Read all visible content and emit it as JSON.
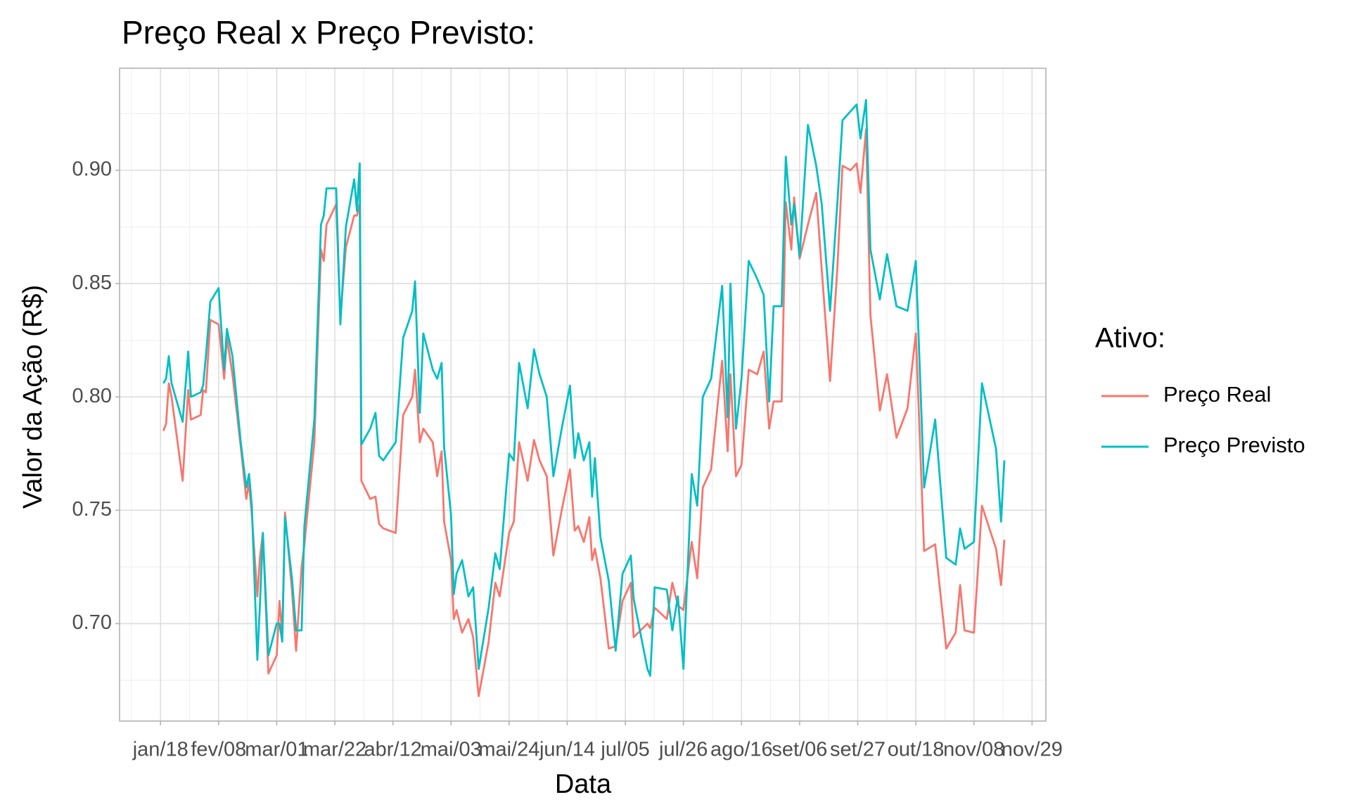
{
  "chart_data": {
    "type": "line",
    "title": "Preço Real x Preço Previsto:",
    "x_label": "Data",
    "y_label": "Valor da Ação (R$)",
    "legend_title": "Ativo:",
    "legend_position": "right",
    "grid": true,
    "x": [
      1,
      2,
      3,
      4,
      8,
      10,
      11,
      14.5,
      15.4,
      16.4,
      18,
      21,
      23,
      24,
      26,
      29,
      31,
      32,
      33,
      35,
      36,
      37,
      39,
      42,
      43,
      44,
      45,
      47.5,
      49,
      51,
      52,
      55.6,
      58,
      59,
      60,
      63.5,
      65,
      67,
      70,
      71,
      72,
      72.6,
      75.8,
      77.7,
      79,
      80.5,
      85,
      87.7,
      91,
      92,
      93.7,
      95,
      98.4,
      100,
      101.6,
      102.5,
      105,
      106,
      107,
      109,
      111.3,
      113,
      115,
      118.6,
      121,
      122.6,
      126,
      127.7,
      129.6,
      132.7,
      135,
      137,
      139.6,
      142,
      145,
      148,
      149.7,
      151,
      153,
      155,
      156,
      157,
      159,
      162,
      164.5,
      167,
      170,
      171,
      176,
      177,
      178.6,
      183,
      185,
      187,
      189,
      192,
      194,
      196,
      199,
      203,
      205,
      206,
      208,
      210,
      212.6,
      215.7,
      218,
      220,
      221.6,
      224.5,
      226,
      228,
      229,
      231,
      234,
      237,
      239,
      242,
      244.6,
      246.5,
      249.4,
      251.6,
      253,
      255,
      256.6,
      260,
      262.6,
      266,
      270,
      273,
      276,
      280,
      284,
      287.4,
      289,
      290.6,
      294,
      296.9,
      302,
      303.8,
      305
    ],
    "series": [
      {
        "name": "Preço Real",
        "color": "#F8766D",
        "values": [
          0.785,
          0.788,
          0.806,
          0.8,
          0.763,
          0.803,
          0.79,
          0.792,
          0.803,
          0.802,
          0.834,
          0.832,
          0.808,
          0.826,
          0.81,
          0.778,
          0.755,
          0.762,
          0.748,
          0.712,
          0.73,
          0.74,
          0.678,
          0.686,
          0.71,
          0.695,
          0.749,
          0.715,
          0.688,
          0.725,
          0.735,
          0.78,
          0.865,
          0.86,
          0.876,
          0.885,
          0.835,
          0.866,
          0.88,
          0.88,
          0.885,
          0.763,
          0.755,
          0.756,
          0.744,
          0.742,
          0.74,
          0.792,
          0.8,
          0.812,
          0.78,
          0.786,
          0.78,
          0.765,
          0.776,
          0.745,
          0.728,
          0.702,
          0.706,
          0.696,
          0.702,
          0.694,
          0.668,
          0.692,
          0.718,
          0.712,
          0.74,
          0.745,
          0.78,
          0.763,
          0.781,
          0.772,
          0.765,
          0.73,
          0.75,
          0.768,
          0.741,
          0.743,
          0.736,
          0.747,
          0.728,
          0.733,
          0.72,
          0.689,
          0.69,
          0.71,
          0.718,
          0.694,
          0.7,
          0.698,
          0.707,
          0.702,
          0.718,
          0.708,
          0.706,
          0.736,
          0.72,
          0.76,
          0.768,
          0.816,
          0.776,
          0.81,
          0.765,
          0.77,
          0.812,
          0.81,
          0.82,
          0.786,
          0.798,
          0.798,
          0.886,
          0.865,
          0.888,
          0.861,
          0.876,
          0.89,
          0.856,
          0.807,
          0.856,
          0.902,
          0.9,
          0.903,
          0.89,
          0.918,
          0.836,
          0.794,
          0.81,
          0.782,
          0.795,
          0.828,
          0.732,
          0.735,
          0.689,
          0.696,
          0.717,
          0.697,
          0.696,
          0.752,
          0.733,
          0.717,
          0.737
        ]
      },
      {
        "name": "Preço Previsto",
        "color": "#00BFC4",
        "values": [
          0.806,
          0.808,
          0.818,
          0.806,
          0.789,
          0.82,
          0.8,
          0.802,
          0.805,
          0.818,
          0.842,
          0.848,
          0.812,
          0.83,
          0.818,
          0.78,
          0.76,
          0.766,
          0.752,
          0.684,
          0.71,
          0.74,
          0.686,
          0.7,
          0.7,
          0.692,
          0.747,
          0.72,
          0.697,
          0.697,
          0.743,
          0.79,
          0.876,
          0.88,
          0.892,
          0.892,
          0.832,
          0.875,
          0.896,
          0.882,
          0.903,
          0.779,
          0.786,
          0.793,
          0.774,
          0.772,
          0.78,
          0.826,
          0.838,
          0.851,
          0.793,
          0.828,
          0.812,
          0.808,
          0.815,
          0.778,
          0.748,
          0.713,
          0.722,
          0.728,
          0.712,
          0.716,
          0.68,
          0.707,
          0.731,
          0.724,
          0.775,
          0.772,
          0.815,
          0.795,
          0.821,
          0.81,
          0.8,
          0.765,
          0.786,
          0.805,
          0.773,
          0.784,
          0.772,
          0.78,
          0.756,
          0.773,
          0.738,
          0.719,
          0.688,
          0.722,
          0.73,
          0.711,
          0.68,
          0.677,
          0.716,
          0.715,
          0.697,
          0.712,
          0.68,
          0.766,
          0.752,
          0.8,
          0.808,
          0.849,
          0.791,
          0.85,
          0.786,
          0.808,
          0.86,
          0.852,
          0.845,
          0.798,
          0.84,
          0.84,
          0.906,
          0.876,
          0.885,
          0.862,
          0.92,
          0.902,
          0.885,
          0.838,
          0.885,
          0.922,
          0.926,
          0.929,
          0.914,
          0.931,
          0.865,
          0.843,
          0.863,
          0.84,
          0.838,
          0.86,
          0.76,
          0.79,
          0.729,
          0.726,
          0.742,
          0.733,
          0.736,
          0.806,
          0.777,
          0.745,
          0.772
        ]
      }
    ],
    "xlim": [
      -14.8,
      320
    ],
    "xticks": [
      {
        "value": 0,
        "label": "jan/18"
      },
      {
        "value": 21,
        "label": "fev/08"
      },
      {
        "value": 42,
        "label": "mar/01"
      },
      {
        "value": 63,
        "label": "mar/22"
      },
      {
        "value": 84,
        "label": "abr/12"
      },
      {
        "value": 105,
        "label": "mai/03"
      },
      {
        "value": 126,
        "label": "mai/24"
      },
      {
        "value": 147,
        "label": "jun/14"
      },
      {
        "value": 168,
        "label": "jul/05"
      },
      {
        "value": 189,
        "label": "jul/26"
      },
      {
        "value": 210,
        "label": "ago/16"
      },
      {
        "value": 231,
        "label": "set/06"
      },
      {
        "value": 252,
        "label": "set/27"
      },
      {
        "value": 273,
        "label": "out/18"
      },
      {
        "value": 294,
        "label": "nov/08"
      },
      {
        "value": 315,
        "label": "nov/29"
      }
    ],
    "ylim": [
      0.657,
      0.945
    ],
    "yticks": [
      {
        "value": 0.7,
        "label": "0.70"
      },
      {
        "value": 0.75,
        "label": "0.75"
      },
      {
        "value": 0.8,
        "label": "0.80"
      },
      {
        "value": 0.85,
        "label": "0.85"
      },
      {
        "value": 0.9,
        "label": "0.90"
      }
    ]
  }
}
